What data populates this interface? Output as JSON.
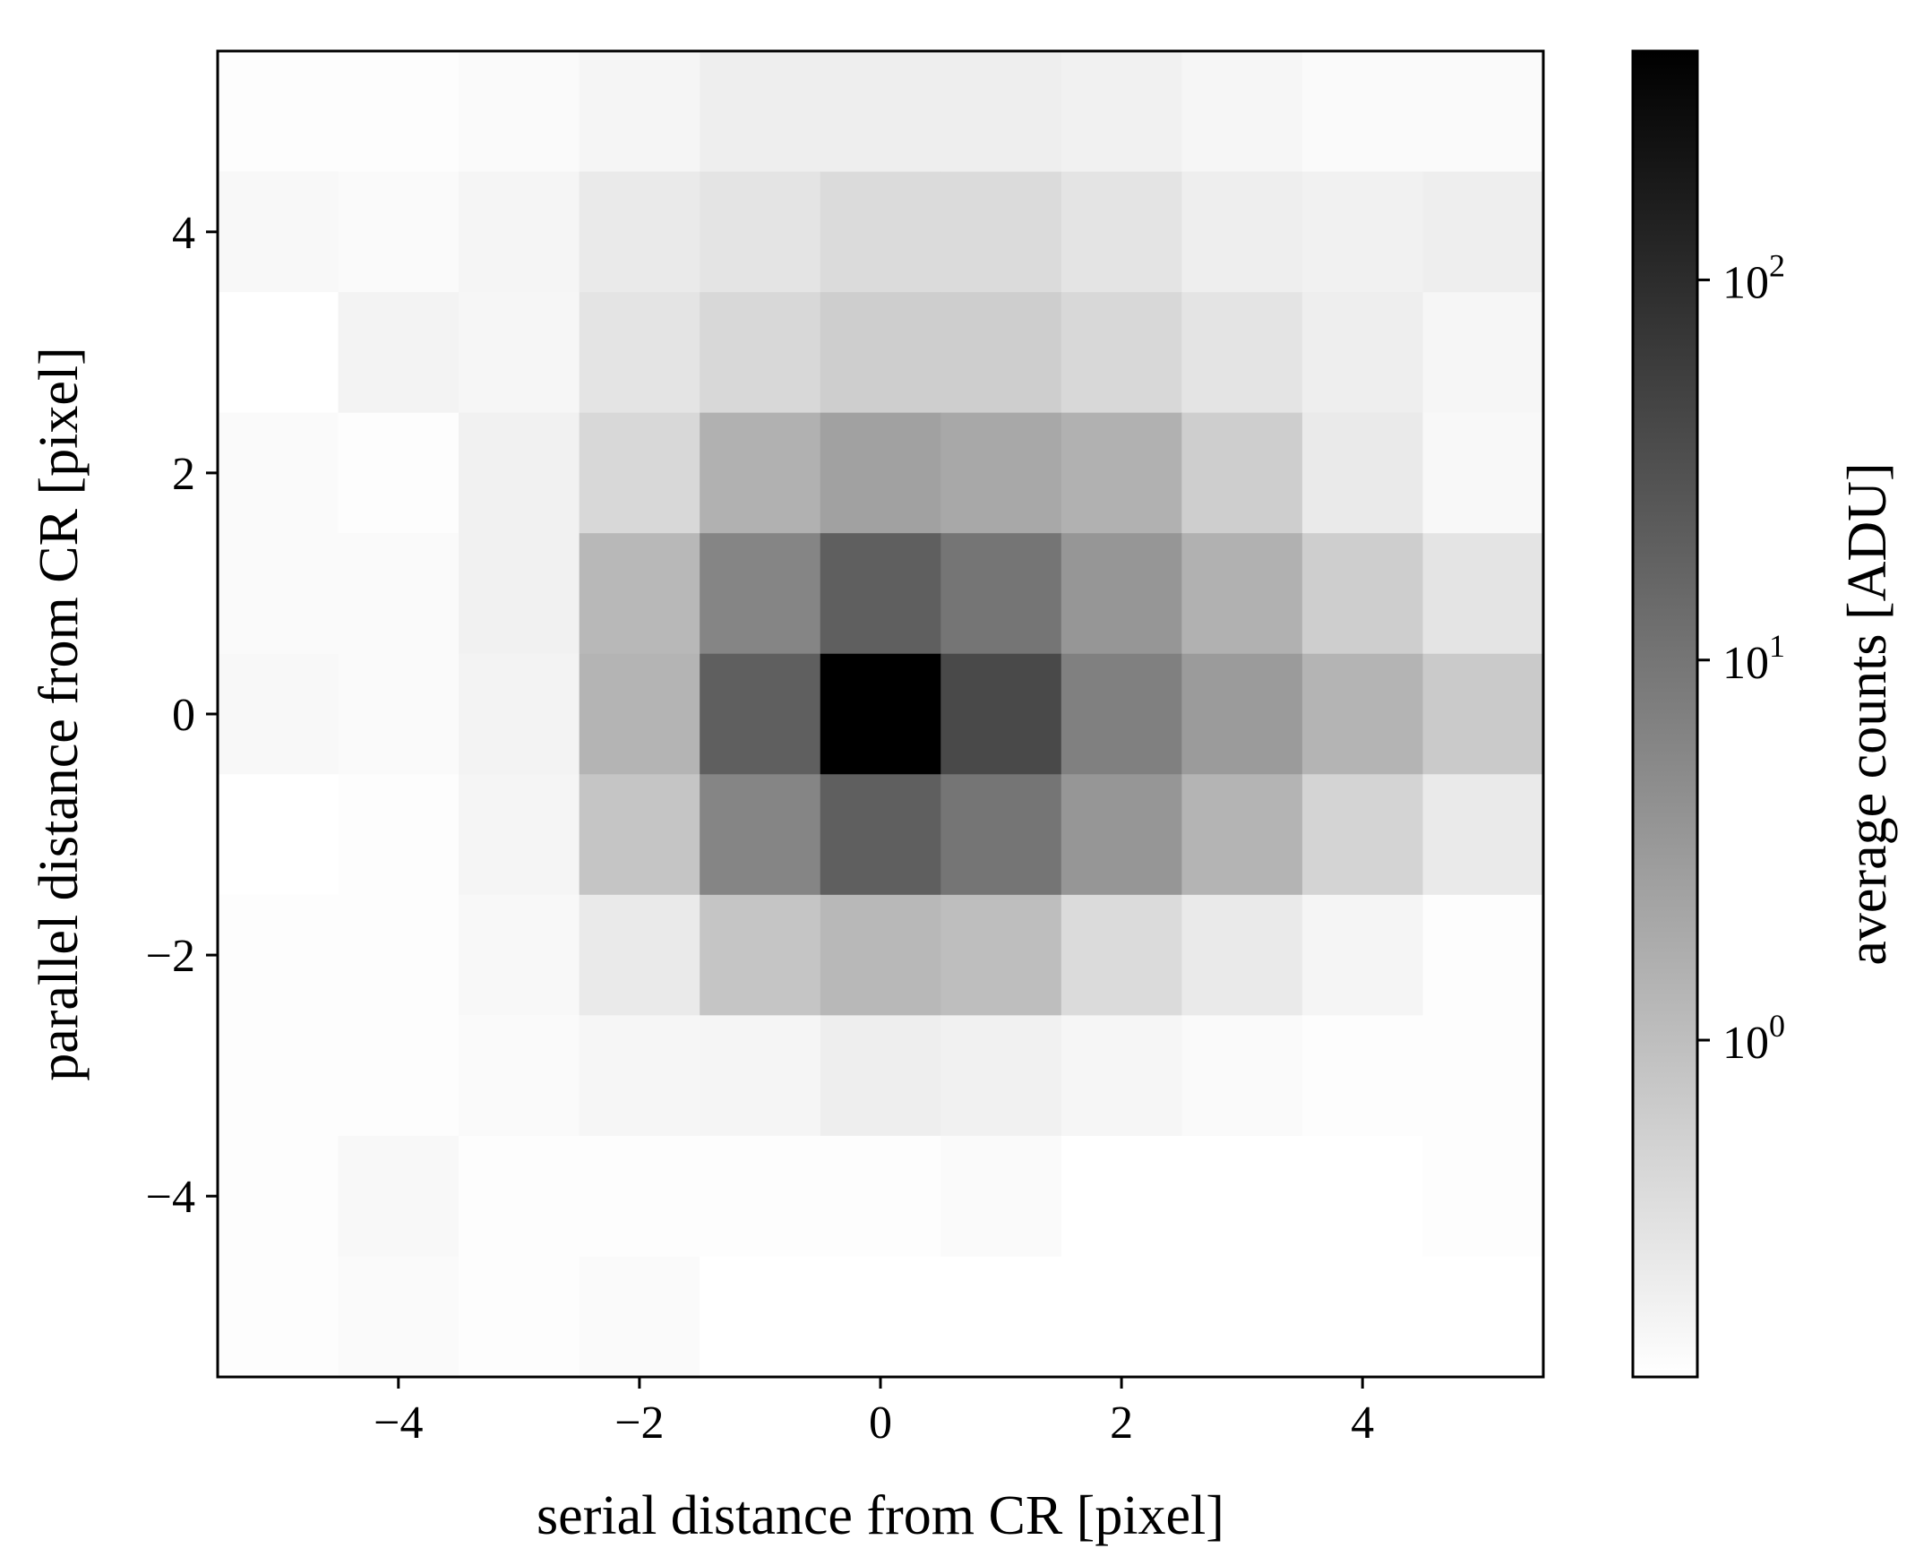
{
  "chart_data": {
    "type": "heatmap",
    "colormap": "gray_r",
    "color_scale": "log",
    "x": [
      -5,
      -4,
      -3,
      -2,
      -1,
      0,
      1,
      2,
      3,
      4,
      5
    ],
    "y": [
      5,
      4,
      3,
      2,
      1,
      0,
      -1,
      -2,
      -3,
      -4,
      -5
    ],
    "values": [
      [
        0.14,
        0.14,
        0.15,
        0.18,
        0.22,
        0.22,
        0.22,
        0.2,
        0.17,
        0.15,
        0.15
      ],
      [
        0.16,
        0.15,
        0.18,
        0.25,
        0.3,
        0.4,
        0.4,
        0.3,
        0.22,
        0.2,
        0.22
      ],
      [
        0.13,
        0.19,
        0.17,
        0.3,
        0.45,
        0.6,
        0.6,
        0.45,
        0.3,
        0.22,
        0.17
      ],
      [
        0.15,
        0.14,
        0.2,
        0.45,
        1.5,
        2.5,
        2.0,
        1.5,
        0.6,
        0.25,
        0.16
      ],
      [
        0.15,
        0.15,
        0.2,
        1.2,
        6.0,
        20.0,
        10.0,
        3.5,
        1.5,
        0.6,
        0.3
      ],
      [
        0.16,
        0.15,
        0.19,
        1.4,
        20.0,
        400.0,
        40.0,
        7.0,
        3.0,
        1.4,
        0.7
      ],
      [
        0.13,
        0.14,
        0.18,
        0.8,
        6.0,
        20.0,
        10.0,
        3.5,
        1.4,
        0.5,
        0.25
      ],
      [
        0.14,
        0.14,
        0.16,
        0.25,
        0.8,
        1.2,
        1.0,
        0.4,
        0.25,
        0.18,
        0.14
      ],
      [
        0.14,
        0.14,
        0.15,
        0.17,
        0.18,
        0.22,
        0.2,
        0.17,
        0.15,
        0.14,
        0.14
      ],
      [
        0.14,
        0.16,
        0.14,
        0.14,
        0.14,
        0.14,
        0.15,
        0.13,
        0.13,
        0.13,
        0.14
      ],
      [
        0.14,
        0.15,
        0.14,
        0.15,
        0.13,
        0.13,
        0.13,
        0.13,
        0.13,
        0.13,
        0.13
      ]
    ],
    "xlabel": "serial distance from CR [pixel]",
    "ylabel": "parallel distance from CR [pixel]",
    "xlim": [
      -5.5,
      5.5
    ],
    "ylim": [
      -5.5,
      5.5
    ],
    "xticks": [
      -4,
      -2,
      0,
      2,
      4
    ],
    "yticks": [
      -4,
      -2,
      0,
      2,
      4
    ],
    "xtick_labels": [
      "−4",
      "−2",
      "0",
      "2",
      "4"
    ],
    "ytick_labels": [
      "−4",
      "−2",
      "0",
      "2",
      "4"
    ],
    "colorbar": {
      "label": "average counts [ADU]",
      "range": [
        0.13,
        400
      ],
      "ticks": [
        1,
        10,
        100
      ],
      "tick_bases": [
        "10",
        "10",
        "10"
      ],
      "tick_exponents": [
        "0",
        "1",
        "2"
      ]
    },
    "grid": false
  }
}
